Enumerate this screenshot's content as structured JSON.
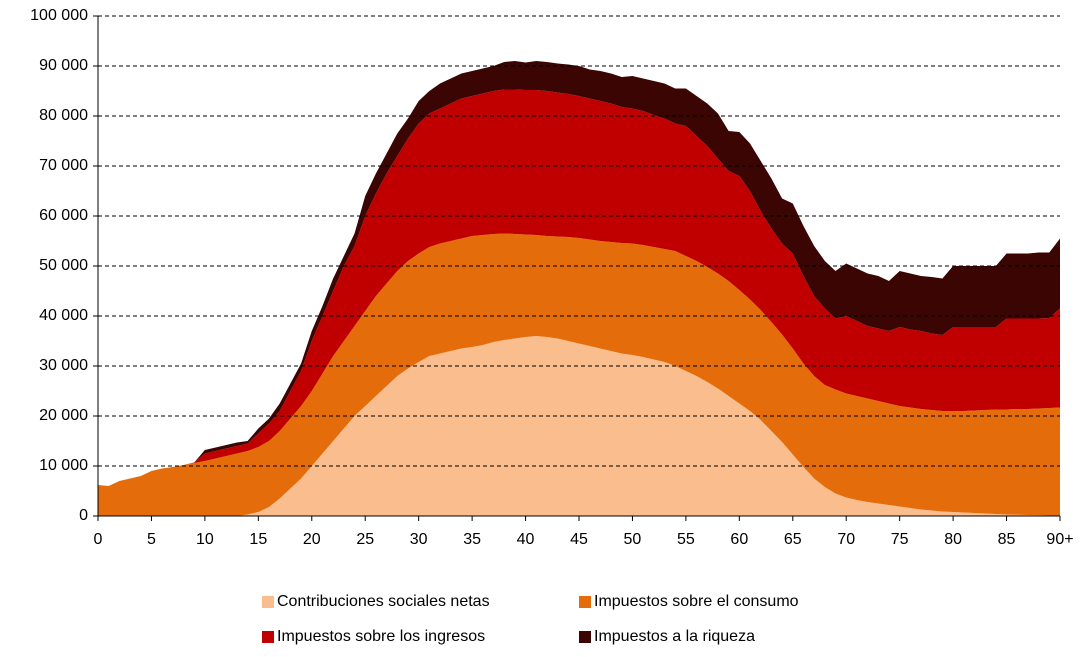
{
  "chart_data": {
    "type": "stacked-area",
    "x": [
      0,
      1,
      2,
      3,
      4,
      5,
      6,
      7,
      8,
      9,
      10,
      11,
      12,
      13,
      14,
      15,
      16,
      17,
      18,
      19,
      20,
      21,
      22,
      23,
      24,
      25,
      26,
      27,
      28,
      29,
      30,
      31,
      32,
      33,
      34,
      35,
      36,
      37,
      38,
      39,
      40,
      41,
      42,
      43,
      44,
      45,
      46,
      47,
      48,
      49,
      50,
      51,
      52,
      53,
      54,
      55,
      56,
      57,
      58,
      59,
      60,
      61,
      62,
      63,
      64,
      65,
      66,
      67,
      68,
      69,
      70,
      71,
      72,
      73,
      74,
      75,
      76,
      77,
      78,
      79,
      80,
      81,
      82,
      83,
      84,
      85,
      86,
      87,
      88,
      89,
      90
    ],
    "xlim": [
      0,
      90
    ],
    "xticks": [
      0,
      5,
      10,
      15,
      20,
      25,
      30,
      35,
      40,
      45,
      50,
      55,
      60,
      65,
      70,
      75,
      80,
      85,
      {
        "value": 90,
        "label": "90+"
      }
    ],
    "ylim": [
      0,
      100000
    ],
    "yticks": [
      {
        "value": 0,
        "label": "0"
      },
      {
        "value": 10000,
        "label": "10 000"
      },
      {
        "value": 20000,
        "label": "20 000"
      },
      {
        "value": 30000,
        "label": "30 000"
      },
      {
        "value": 40000,
        "label": "40 000"
      },
      {
        "value": 50000,
        "label": "50 000"
      },
      {
        "value": 60000,
        "label": "60 000"
      },
      {
        "value": 70000,
        "label": "70 000"
      },
      {
        "value": 80000,
        "label": "80 000"
      },
      {
        "value": 90000,
        "label": "90 000"
      },
      {
        "value": 100000,
        "label": "100 000"
      }
    ],
    "grid": true,
    "series": [
      {
        "name": "Contribuciones sociales netas",
        "color": "#f9bd8e",
        "values": [
          0,
          0,
          0,
          0,
          0,
          0,
          0,
          0,
          0,
          0,
          0,
          0,
          0,
          0,
          300,
          800,
          1800,
          3500,
          5500,
          7500,
          10000,
          12500,
          15000,
          17500,
          20000,
          22000,
          24000,
          26000,
          28000,
          29500,
          30800,
          32000,
          32500,
          33000,
          33500,
          33800,
          34200,
          34800,
          35200,
          35500,
          35800,
          36000,
          35800,
          35500,
          35000,
          34500,
          34000,
          33500,
          33000,
          32500,
          32200,
          31800,
          31300,
          30800,
          30000,
          29000,
          28000,
          26800,
          25500,
          24000,
          22500,
          21000,
          19200,
          17000,
          14800,
          12300,
          9800,
          7500,
          5800,
          4500,
          3700,
          3200,
          2800,
          2500,
          2200,
          1900,
          1600,
          1300,
          1100,
          900,
          800,
          700,
          600,
          500,
          400,
          300,
          250,
          200,
          150,
          100,
          100
        ]
      },
      {
        "name": "Impuestos sobre el consumo",
        "color": "#e46c0a",
        "values": [
          6200,
          6000,
          7000,
          7500,
          8000,
          9000,
          9500,
          9800,
          10200,
          10600,
          11000,
          11500,
          12000,
          12500,
          12700,
          13000,
          13200,
          13500,
          14000,
          14500,
          15000,
          16000,
          17000,
          17500,
          18000,
          19000,
          20000,
          20500,
          21000,
          21500,
          21700,
          21800,
          22000,
          22000,
          22000,
          22200,
          22000,
          21600,
          21300,
          20900,
          20500,
          20200,
          20200,
          20400,
          20800,
          21100,
          21300,
          21500,
          21800,
          22100,
          22300,
          22400,
          22500,
          22600,
          23000,
          23000,
          23000,
          23000,
          23000,
          23000,
          22700,
          22300,
          22000,
          21800,
          21500,
          21200,
          20700,
          20500,
          20400,
          20800,
          20800,
          20800,
          20700,
          20500,
          20300,
          20100,
          20100,
          20100,
          20100,
          20100,
          20200,
          20300,
          20500,
          20700,
          20900,
          21000,
          21150,
          21200,
          21350,
          21500,
          21600
        ]
      },
      {
        "name": "Impuestos sobre los ingresos",
        "color": "#c00000",
        "values": [
          0,
          0,
          0,
          0,
          0,
          0,
          0,
          0,
          0,
          100,
          1500,
          1500,
          1500,
          1500,
          1500,
          2700,
          3500,
          4000,
          5500,
          7000,
          10000,
          11500,
          13000,
          15000,
          16000,
          19000,
          20500,
          22000,
          23000,
          24500,
          26000,
          26700,
          27000,
          27500,
          28000,
          28000,
          28300,
          28600,
          28800,
          28900,
          28900,
          29000,
          29000,
          28800,
          28600,
          28400,
          28200,
          28000,
          27700,
          27200,
          27000,
          26800,
          26400,
          26100,
          25500,
          26000,
          25000,
          24200,
          23000,
          22000,
          22800,
          21700,
          19800,
          18700,
          18200,
          19000,
          17500,
          16000,
          15300,
          14200,
          15500,
          15000,
          14500,
          14500,
          14500,
          15800,
          15600,
          15600,
          15300,
          15200,
          16800,
          16800,
          16700,
          16600,
          16500,
          18200,
          18100,
          18100,
          18000,
          18000,
          19800
        ]
      },
      {
        "name": "Impuestos a la riqueza",
        "color": "#3a0502",
        "values": [
          0,
          0,
          0,
          0,
          0,
          0,
          0,
          0,
          0,
          0,
          700,
          700,
          700,
          700,
          500,
          1000,
          1000,
          1500,
          1500,
          1500,
          2000,
          2000,
          2500,
          2000,
          2500,
          4000,
          4000,
          4000,
          4500,
          4000,
          4500,
          4500,
          5000,
          5000,
          5000,
          5000,
          5000,
          5000,
          5500,
          5700,
          5500,
          5800,
          5800,
          5800,
          5900,
          6000,
          5800,
          6000,
          6000,
          6000,
          6500,
          6500,
          6800,
          7000,
          7000,
          7500,
          8000,
          8500,
          9000,
          8000,
          8800,
          9500,
          10000,
          10000,
          9000,
          10000,
          10000,
          10000,
          9500,
          9500,
          10500,
          10500,
          10500,
          10500,
          10000,
          11200,
          11200,
          11000,
          11300,
          11300,
          12200,
          12200,
          12200,
          12200,
          12200,
          13000,
          13000,
          13000,
          13200,
          13100,
          14000
        ]
      }
    ]
  }
}
